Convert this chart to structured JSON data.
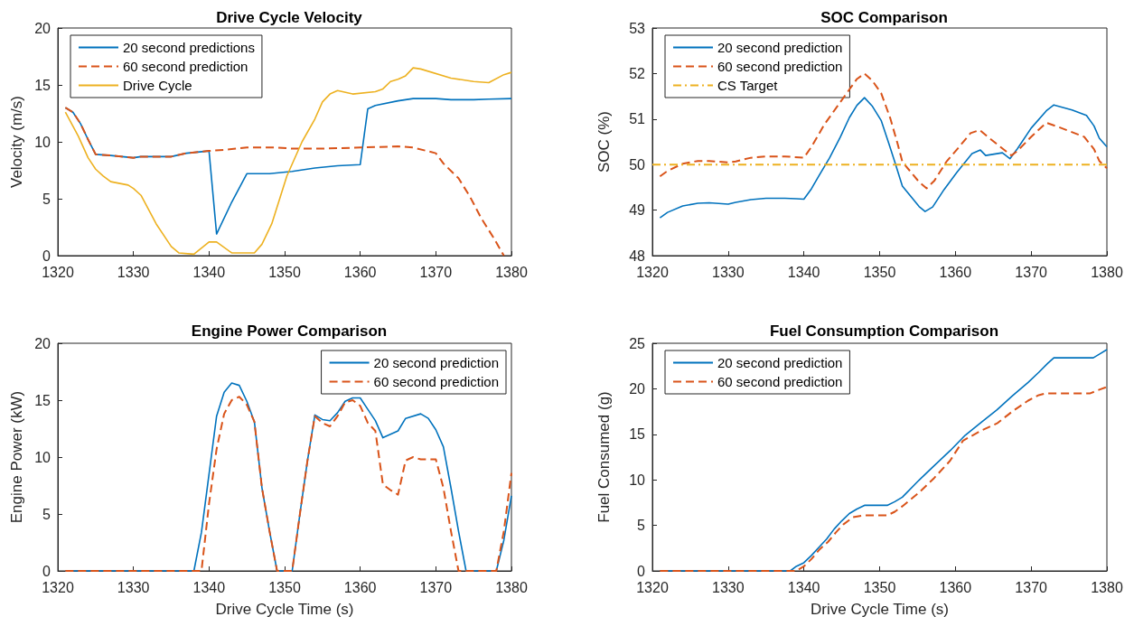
{
  "chart_data": [
    {
      "type": "line",
      "title": "Drive Cycle Velocity",
      "ylabel": "Velocity (m/s)",
      "xlim": [
        1320,
        1380
      ],
      "xticks": [
        1320,
        1330,
        1340,
        1350,
        1360,
        1370,
        1380
      ],
      "ylim": [
        0,
        20
      ],
      "yticks": [
        0,
        5,
        10,
        15,
        20
      ],
      "grid": false,
      "legend": "top left",
      "marker": "none",
      "series": [
        {
          "name": "20 second predictions",
          "color": "#0072bd",
          "line_style": "solid",
          "x": [
            1321,
            1322,
            1323,
            1324,
            1325,
            1327,
            1330,
            1331,
            1335,
            1337,
            1340,
            1341,
            1343,
            1345,
            1348,
            1351,
            1354,
            1357,
            1360,
            1361,
            1362,
            1365,
            1367,
            1370,
            1372,
            1375,
            1377,
            1380
          ],
          "values": [
            13.0,
            12.6,
            11.6,
            10.2,
            8.9,
            8.8,
            8.6,
            8.7,
            8.7,
            9.0,
            9.2,
            1.9,
            4.7,
            7.2,
            7.2,
            7.4,
            7.7,
            7.9,
            8.0,
            12.9,
            13.2,
            13.6,
            13.8,
            13.8,
            13.7,
            13.7,
            13.75,
            13.8
          ]
        },
        {
          "name": "60 second prediction",
          "color": "#d95319",
          "line_style": "dashed",
          "x": [
            1321,
            1322,
            1323,
            1324,
            1325,
            1327,
            1330,
            1331,
            1335,
            1337,
            1340,
            1342,
            1345,
            1349,
            1351,
            1355,
            1360,
            1365,
            1367,
            1370,
            1371,
            1373,
            1374.5,
            1376,
            1377.7,
            1379
          ],
          "values": [
            13.0,
            12.6,
            11.6,
            10.2,
            8.9,
            8.8,
            8.6,
            8.7,
            8.7,
            9.0,
            9.2,
            9.3,
            9.5,
            9.5,
            9.4,
            9.4,
            9.5,
            9.6,
            9.5,
            9.0,
            8.1,
            6.8,
            5.2,
            3.3,
            1.5,
            0
          ]
        },
        {
          "name": "Drive Cycle",
          "color": "#edb120",
          "line_style": "solid",
          "x": [
            1321,
            1322.7,
            1324,
            1325,
            1326,
            1327,
            1329.3,
            1330,
            1331,
            1333,
            1335,
            1336,
            1338,
            1340,
            1341,
            1343,
            1346,
            1347,
            1348.3,
            1350.3,
            1352.3,
            1354,
            1355,
            1356,
            1357,
            1359,
            1362,
            1363,
            1364,
            1365,
            1366,
            1367,
            1368,
            1372,
            1375,
            1377,
            1379,
            1380
          ],
          "values": [
            12.6,
            10.5,
            8.6,
            7.6,
            7.0,
            6.5,
            6.2,
            5.9,
            5.3,
            2.8,
            0.8,
            0.24,
            0.13,
            1.2,
            1.2,
            0.24,
            0.24,
            1.0,
            2.8,
            7.0,
            10.0,
            12.0,
            13.5,
            14.2,
            14.5,
            14.2,
            14.4,
            14.65,
            15.3,
            15.5,
            15.8,
            16.5,
            16.4,
            15.6,
            15.3,
            15.2,
            15.9,
            16.1
          ]
        }
      ]
    },
    {
      "type": "line",
      "title": "SOC Comparison",
      "ylabel": "SOC (%)",
      "xlim": [
        1320,
        1380
      ],
      "xticks": [
        1320,
        1330,
        1340,
        1350,
        1360,
        1370,
        1380
      ],
      "ylim": [
        48,
        53
      ],
      "yticks": [
        48,
        49,
        50,
        51,
        52,
        53
      ],
      "grid": false,
      "legend": "top left",
      "marker": "none",
      "series": [
        {
          "name": "20 second prediction",
          "color": "#0072bd",
          "line_style": "solid",
          "x": [
            1321,
            1322,
            1324,
            1326,
            1327.5,
            1330,
            1331,
            1333,
            1335,
            1337.5,
            1339,
            1340,
            1341,
            1342,
            1343.4,
            1344.8,
            1346,
            1347,
            1348,
            1349,
            1350.2,
            1351.2,
            1352,
            1353,
            1355.2,
            1356,
            1357,
            1358.5,
            1360.2,
            1362.2,
            1363.3,
            1364,
            1366.2,
            1367.2,
            1368.2,
            1370,
            1372,
            1373,
            1375.4,
            1377.3,
            1378.3,
            1379,
            1380
          ],
          "values": [
            48.83,
            48.95,
            49.09,
            49.15,
            49.16,
            49.13,
            49.17,
            49.23,
            49.26,
            49.26,
            49.25,
            49.24,
            49.47,
            49.76,
            50.15,
            50.6,
            51.03,
            51.3,
            51.47,
            51.29,
            50.97,
            50.47,
            50.06,
            49.53,
            49.08,
            48.97,
            49.07,
            49.45,
            49.83,
            50.24,
            50.32,
            50.2,
            50.26,
            50.13,
            50.35,
            50.8,
            51.18,
            51.31,
            51.2,
            51.08,
            50.85,
            50.58,
            50.39
          ]
        },
        {
          "name": "60 second prediction",
          "color": "#d95319",
          "line_style": "dashed",
          "x": [
            1321,
            1322,
            1324,
            1326,
            1327.5,
            1330,
            1331,
            1333,
            1335,
            1337.5,
            1340,
            1341,
            1342.7,
            1344.8,
            1347,
            1348,
            1349,
            1350.2,
            1351.4,
            1352.4,
            1353,
            1355.2,
            1356.2,
            1357.2,
            1358.8,
            1360.5,
            1362,
            1363.2,
            1364.2,
            1366,
            1367.4,
            1368.2,
            1370,
            1372,
            1373.7,
            1377,
            1378.3,
            1379,
            1380
          ],
          "values": [
            49.74,
            49.86,
            50.02,
            50.08,
            50.08,
            50.05,
            50.07,
            50.15,
            50.18,
            50.18,
            50.15,
            50.39,
            50.88,
            51.37,
            51.88,
            52.0,
            51.85,
            51.57,
            51.02,
            50.44,
            50.06,
            49.62,
            49.48,
            49.64,
            50.06,
            50.39,
            50.69,
            50.76,
            50.62,
            50.38,
            50.2,
            50.3,
            50.61,
            50.92,
            50.82,
            50.61,
            50.34,
            50.08,
            49.92
          ]
        },
        {
          "name": "CS Target",
          "color": "#edb120",
          "line_style": "dashdot",
          "x": [
            1320,
            1380
          ],
          "values": [
            50,
            50
          ]
        }
      ]
    },
    {
      "type": "line",
      "title": "Engine Power Comparison",
      "xlabel": "Drive Cycle Time (s)",
      "ylabel": "Engine Power (kW)",
      "xlim": [
        1320,
        1380
      ],
      "xticks": [
        1320,
        1330,
        1340,
        1350,
        1360,
        1370,
        1380
      ],
      "ylim": [
        0,
        20
      ],
      "yticks": [
        0,
        5,
        10,
        15,
        20
      ],
      "grid": false,
      "legend": "top right",
      "marker": "none",
      "series": [
        {
          "name": "20 second prediction",
          "color": "#0072bd",
          "line_style": "solid",
          "x": [
            1321,
            1338,
            1339,
            1341,
            1342,
            1343,
            1344,
            1345,
            1346,
            1347,
            1348,
            1349,
            1351,
            1352,
            1353,
            1354,
            1355,
            1356,
            1357,
            1358,
            1359,
            1360,
            1361,
            1362,
            1363,
            1364,
            1365,
            1366,
            1368,
            1369,
            1370,
            1371,
            1372,
            1373,
            1374,
            1378,
            1379,
            1380
          ],
          "values": [
            0,
            0,
            3.4,
            13.6,
            15.7,
            16.5,
            16.3,
            14.9,
            13.1,
            7.3,
            3.5,
            0,
            0,
            4.9,
            9.6,
            13.7,
            13.3,
            13.2,
            13.9,
            14.9,
            15.2,
            15.2,
            14.2,
            13.2,
            11.7,
            12.0,
            12.3,
            13.4,
            13.8,
            13.4,
            12.4,
            10.9,
            7.3,
            3.5,
            0,
            0,
            2.7,
            6.6
          ]
        },
        {
          "name": "60 second prediction",
          "color": "#d95319",
          "line_style": "dashed",
          "x": [
            1321,
            1339,
            1340,
            1341,
            1342,
            1343,
            1344,
            1345,
            1346,
            1347,
            1348,
            1349,
            1351,
            1352,
            1353,
            1354,
            1355,
            1356,
            1357,
            1358,
            1359,
            1360,
            1361,
            1362,
            1363,
            1364,
            1365,
            1366,
            1367,
            1368,
            1370,
            1371,
            1372,
            1373,
            1378,
            1379,
            1380
          ],
          "values": [
            0,
            0,
            5.9,
            10.7,
            13.8,
            15.0,
            15.3,
            14.6,
            13.1,
            7.3,
            3.5,
            0,
            0,
            4.9,
            9.6,
            13.6,
            13.0,
            12.7,
            13.6,
            14.8,
            15.0,
            14.5,
            13.0,
            12.3,
            7.6,
            7.1,
            6.7,
            9.7,
            10.0,
            9.8,
            9.8,
            7.3,
            3.5,
            0,
            0,
            3.5,
            8.6
          ]
        }
      ]
    },
    {
      "type": "line",
      "title": "Fuel Consumption Comparison",
      "xlabel": "Drive Cycle Time (s)",
      "ylabel": "Fuel Consumed (g)",
      "xlim": [
        1320,
        1380
      ],
      "xticks": [
        1320,
        1330,
        1340,
        1350,
        1360,
        1370,
        1380
      ],
      "ylim": [
        0,
        25
      ],
      "yticks": [
        0,
        5,
        10,
        15,
        20,
        25
      ],
      "grid": false,
      "legend": "top left",
      "marker": "none",
      "series": [
        {
          "name": "20 second prediction",
          "color": "#0072bd",
          "line_style": "solid",
          "x": [
            1321,
            1338.2,
            1339,
            1340,
            1341,
            1342,
            1343,
            1344,
            1345,
            1346,
            1347,
            1348,
            1351,
            1352,
            1353,
            1355,
            1357,
            1359.3,
            1361.3,
            1363.4,
            1365.5,
            1367.5,
            1369.6,
            1371,
            1372.2,
            1373,
            1378.2,
            1379,
            1380
          ],
          "values": [
            0,
            0,
            0.5,
            0.9,
            1.7,
            2.6,
            3.5,
            4.6,
            5.5,
            6.3,
            6.8,
            7.2,
            7.2,
            7.6,
            8.1,
            9.8,
            11.4,
            13.2,
            14.9,
            16.3,
            17.7,
            19.2,
            20.7,
            21.8,
            22.8,
            23.4,
            23.4,
            23.8,
            24.3
          ]
        },
        {
          "name": "60 second prediction",
          "color": "#d95319",
          "line_style": "dashed",
          "x": [
            1321,
            1339,
            1340,
            1341,
            1342,
            1343.2,
            1344.2,
            1345.2,
            1346.5,
            1348,
            1351,
            1352,
            1353,
            1355.2,
            1357.2,
            1359.3,
            1361,
            1363.4,
            1365.5,
            1367.5,
            1369.6,
            1371,
            1372,
            1377.8,
            1379,
            1380
          ],
          "values": [
            0,
            0,
            0.5,
            1.3,
            2.3,
            3.2,
            4.2,
            5.1,
            5.9,
            6.1,
            6.1,
            6.5,
            7.1,
            8.6,
            10.2,
            12.1,
            14.3,
            15.4,
            16.2,
            17.5,
            18.7,
            19.3,
            19.5,
            19.5,
            19.9,
            20.2
          ]
        }
      ]
    }
  ]
}
